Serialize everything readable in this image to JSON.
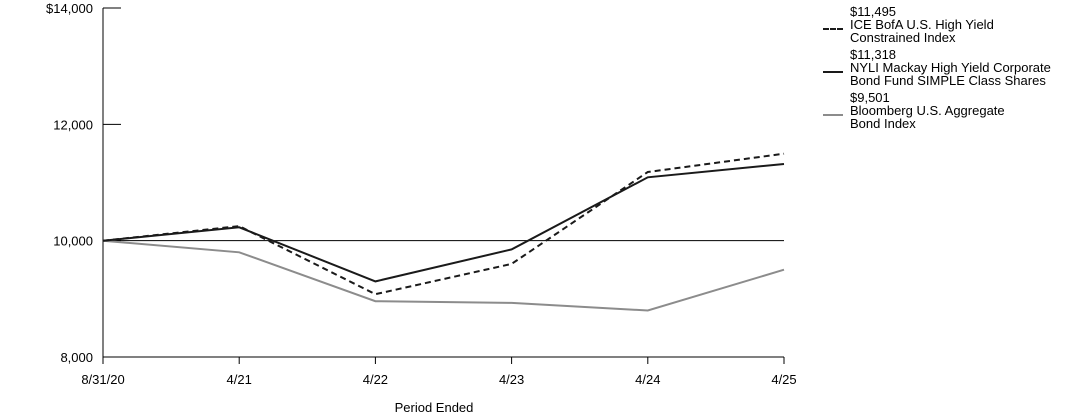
{
  "chart_data": {
    "type": "line",
    "title": "",
    "xlabel": "Period Ended",
    "ylabel": "",
    "x": [
      "8/31/20",
      "4/21",
      "4/22",
      "4/23",
      "4/24",
      "4/25"
    ],
    "y_ticks": [
      "$14,000",
      "12,000",
      "10,000",
      "8,000"
    ],
    "ylim": [
      8000,
      14000
    ],
    "reference_line": 10000,
    "grid": false,
    "legend_position": "right",
    "series": [
      {
        "name": "ICE BofA U.S. High Yield Constrained Index",
        "end_label": "$11,495",
        "color": "#1a1a1a",
        "style": "dashed",
        "values": [
          10000,
          10250,
          9080,
          9600,
          11180,
          11495
        ]
      },
      {
        "name": "NYLI Mackay High Yield Corporate Bond Fund SIMPLE Class Shares",
        "end_label": "$11,318",
        "color": "#1a1a1a",
        "style": "solid",
        "values": [
          10000,
          10230,
          9300,
          9850,
          11090,
          11318
        ]
      },
      {
        "name": "Bloomberg U.S. Aggregate Bond Index",
        "end_label": "$9,501",
        "color": "#8c8c8c",
        "style": "solid",
        "values": [
          10000,
          9800,
          8960,
          8930,
          8800,
          9501
        ]
      }
    ]
  },
  "legend": [
    {
      "value": "$11,495",
      "label": "ICE BofA U.S. High Yield\nConstrained Index",
      "color": "#1a1a1a",
      "style": "dashed"
    },
    {
      "value": "$11,318",
      "label": "NYLI Mackay High Yield Corporate\nBond Fund SIMPLE Class Shares",
      "color": "#1a1a1a",
      "style": "solid"
    },
    {
      "value": "$9,501",
      "label": "Bloomberg U.S. Aggregate\nBond Index",
      "color": "#8c8c8c",
      "style": "solid"
    }
  ]
}
